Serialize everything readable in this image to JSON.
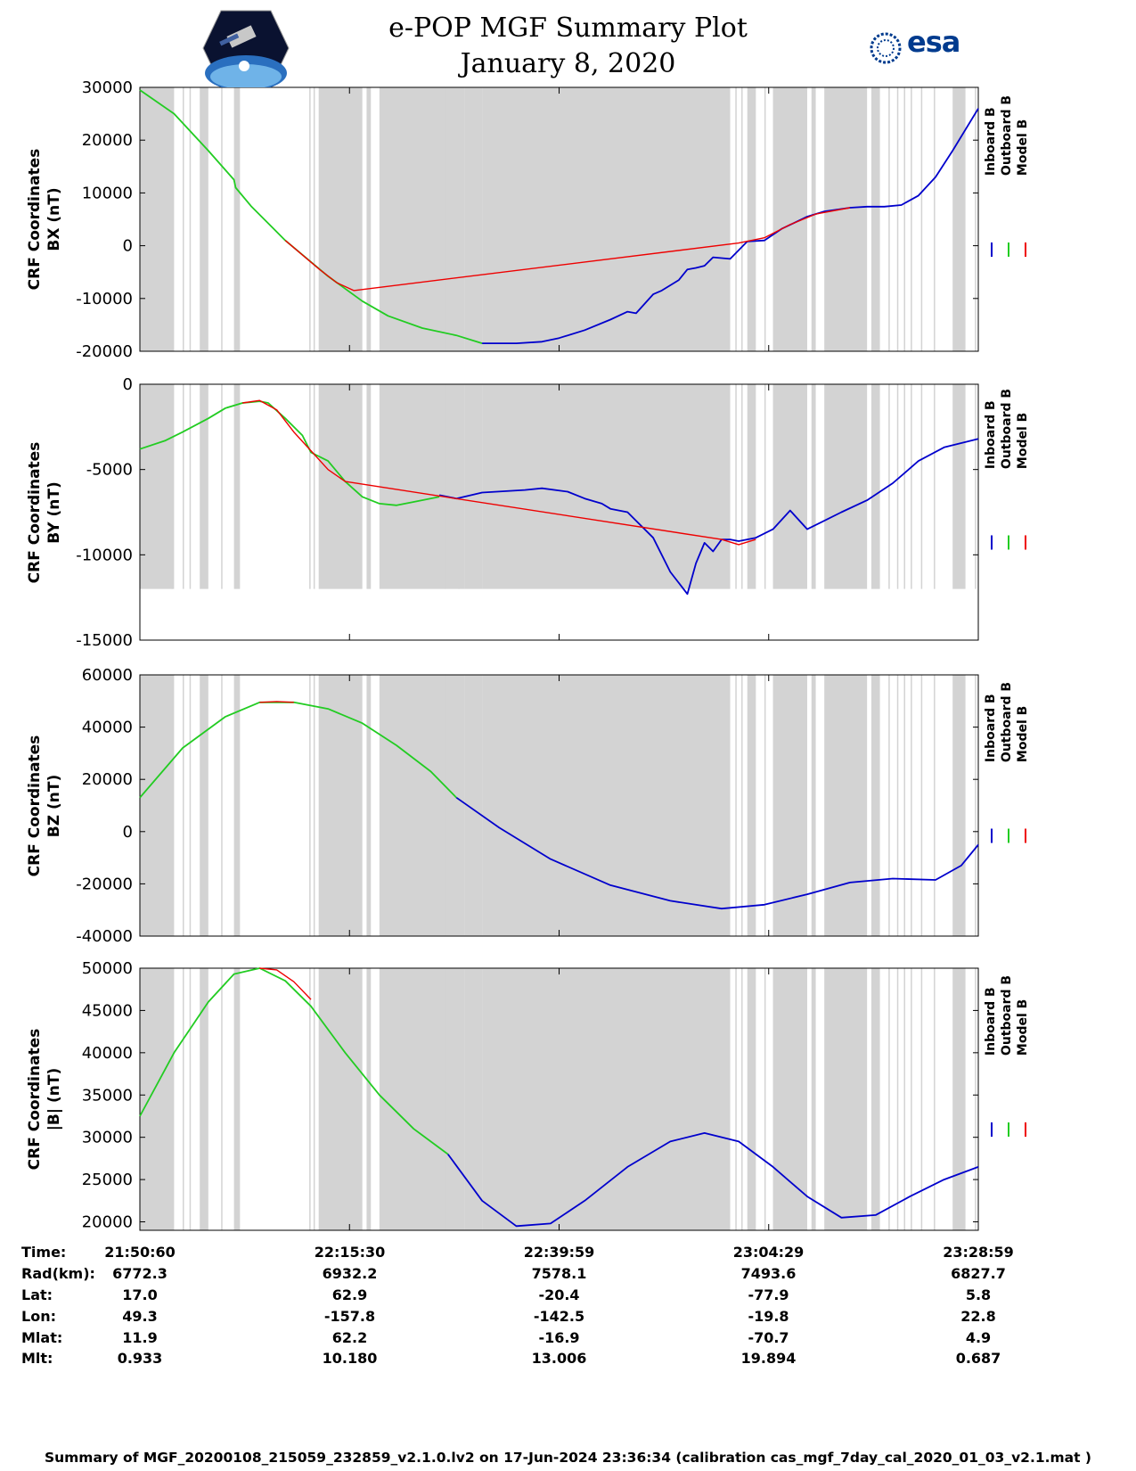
{
  "title": "e-POP MGF Summary Plot",
  "subtitle": "January 8, 2020",
  "logos": {
    "left": "cassiope-mission-logo",
    "right_text": "esa"
  },
  "colors": {
    "inboard": "#0000cc",
    "outboard": "#22cc22",
    "model": "#ee0000",
    "shade": "#d3d3d3"
  },
  "legend": {
    "inboard": "Inboard B",
    "outboard": "Outboard B",
    "model": "Model B"
  },
  "time_table": {
    "row_labels": [
      "Time:",
      "Rad(km):",
      "Lat:",
      "Lon:",
      "Mlat:",
      "Mlt:"
    ],
    "columns": [
      [
        "21:50:60",
        "6772.3",
        "17.0",
        "49.3",
        "11.9",
        "0.933"
      ],
      [
        "22:15:30",
        "6932.2",
        "62.9",
        "-157.8",
        "62.2",
        "10.180"
      ],
      [
        "22:39:59",
        "7578.1",
        "-20.4",
        "-142.5",
        "-16.9",
        "13.006"
      ],
      [
        "23:04:29",
        "7493.6",
        "-77.9",
        "-19.8",
        "-70.7",
        "19.894"
      ],
      [
        "23:28:59",
        "6827.7",
        "5.8",
        "22.8",
        "4.9",
        "0.687"
      ]
    ]
  },
  "footer": "Summary of MGF_20200108_215059_232859_v2.1.0.lv2 on 17-Jun-2024 23:36:34 (calibration cas_mgf_7day_cal_2020_01_03_v2.1.mat )",
  "chart_data": [
    {
      "type": "line",
      "ylabel": "CRF Coordinates BX (nT)",
      "ylabel_lines": [
        "CRF Coordinates",
        "BX (nT)"
      ],
      "xlim_minutes": [
        0,
        98
      ],
      "xticks_minutes": [
        24.5,
        49,
        73.5
      ],
      "ylim": [
        -20000,
        30000
      ],
      "yticks": [
        -20000,
        -10000,
        0,
        10000,
        20000,
        30000
      ],
      "green_end_minute": 40,
      "series": [
        {
          "name": "Inboard B",
          "x": [
            40,
            44,
            47,
            49,
            52,
            55,
            57,
            58,
            60,
            61,
            63,
            64,
            65,
            66,
            67,
            69,
            71,
            73,
            75,
            78,
            80,
            83,
            85,
            87,
            89,
            91,
            93,
            95,
            98
          ],
          "y": [
            -18500,
            -18500,
            -18200,
            -17500,
            -16000,
            -14000,
            -12500,
            -12800,
            -9200,
            -8500,
            -6500,
            -4500,
            -4200,
            -3800,
            -2200,
            -2500,
            800,
            1000,
            3200,
            5500,
            6500,
            7200,
            7400,
            7400,
            7700,
            9500,
            13000,
            18000,
            26000
          ]
        },
        {
          "name": "Outboard B",
          "x": [
            0,
            4,
            8,
            11,
            11.2,
            13,
            17,
            22,
            26,
            29,
            33,
            37,
            40
          ],
          "y": [
            29500,
            25000,
            18000,
            12500,
            11000,
            7500,
            1000,
            -5800,
            -10500,
            -13300,
            -15600,
            -17000,
            -18500
          ]
        },
        {
          "name": "Model B",
          "x": [
            17,
            21,
            23,
            25,
            70,
            73,
            76,
            79,
            83
          ],
          "y": [
            1000,
            -4500,
            -7000,
            -8500,
            500,
            1500,
            4000,
            6000,
            7200
          ]
        }
      ]
    },
    {
      "type": "line",
      "ylabel": "CRF Coordinates BY (nT)",
      "ylabel_lines": [
        "CRF Coordinates",
        "BY (nT)"
      ],
      "xlim_minutes": [
        0,
        98
      ],
      "xticks_minutes": [
        24.5,
        49,
        73.5
      ],
      "ylim": [
        -15000,
        0
      ],
      "yticks": [
        -15000,
        -10000,
        -5000,
        0
      ],
      "green_end_minute": 35,
      "series": [
        {
          "name": "Inboard B",
          "x": [
            35,
            37,
            40,
            45,
            47,
            50,
            52,
            54,
            55,
            57,
            58,
            60,
            62,
            64,
            65,
            66,
            67,
            68,
            69,
            70,
            72,
            74,
            76,
            78,
            80,
            82,
            85,
            88,
            91,
            94,
            98
          ],
          "y": [
            -6500,
            -6700,
            -6350,
            -6200,
            -6100,
            -6300,
            -6700,
            -7000,
            -7300,
            -7500,
            -8000,
            -9000,
            -11000,
            -12300,
            -10500,
            -9300,
            -9800,
            -9100,
            -9100,
            -9200,
            -9000,
            -8500,
            -7400,
            -8500,
            -8000,
            -7500,
            -6800,
            -5800,
            -4500,
            -3700,
            -3200
          ]
        },
        {
          "name": "Outboard B",
          "x": [
            0,
            3,
            5,
            8,
            10,
            12,
            13,
            14,
            15,
            17,
            19,
            20,
            22,
            24,
            26,
            28,
            30,
            32,
            35
          ],
          "y": [
            -3800,
            -3300,
            -2800,
            -2000,
            -1400,
            -1100,
            -1050,
            -1000,
            -1100,
            -2000,
            -3000,
            -4000,
            -4500,
            -5700,
            -6600,
            -7000,
            -7100,
            -6900,
            -6600
          ]
        },
        {
          "name": "Model B",
          "x": [
            12,
            14,
            16,
            18,
            20,
            22,
            24,
            68,
            70,
            72
          ],
          "y": [
            -1100,
            -950,
            -1500,
            -2800,
            -3900,
            -5000,
            -5700,
            -9100,
            -9400,
            -9100
          ]
        }
      ]
    },
    {
      "type": "line",
      "ylabel": "CRF Coordinates BZ (nT)",
      "ylabel_lines": [
        "CRF Coordinates",
        "BZ (nT)"
      ],
      "xlim_minutes": [
        0,
        98
      ],
      "xticks_minutes": [
        24.5,
        49,
        73.5
      ],
      "ylim": [
        -40000,
        60000
      ],
      "yticks": [
        -40000,
        -20000,
        0,
        20000,
        40000,
        60000
      ],
      "green_end_minute": 37,
      "series": [
        {
          "name": "Inboard B",
          "x": [
            37,
            42,
            48,
            55,
            62,
            68,
            73,
            78,
            83,
            88,
            93,
            96,
            98
          ],
          "y": [
            13000,
            1500,
            -10500,
            -20500,
            -26500,
            -29500,
            -28000,
            -24000,
            -19500,
            -18000,
            -18500,
            -13000,
            -5000
          ]
        },
        {
          "name": "Outboard B",
          "x": [
            0,
            5,
            10,
            14,
            18,
            22,
            26,
            30,
            34,
            37
          ],
          "y": [
            13000,
            32000,
            44000,
            49500,
            49500,
            47000,
            41500,
            33000,
            23000,
            13000
          ]
        },
        {
          "name": "Model B",
          "x": [
            14,
            16,
            18
          ],
          "y": [
            49500,
            49800,
            49500
          ]
        }
      ]
    },
    {
      "type": "line",
      "ylabel": "CRF Coordinates |B| (nT)",
      "ylabel_lines": [
        "CRF Coordinates",
        "|B| (nT)"
      ],
      "xlim_minutes": [
        0,
        98
      ],
      "xticks_minutes": [
        24.5,
        49,
        73.5
      ],
      "ylim": [
        19000,
        50000
      ],
      "yticks": [
        20000,
        25000,
        30000,
        35000,
        40000,
        45000,
        50000
      ],
      "green_end_minute": 36,
      "series": [
        {
          "name": "Inboard B",
          "x": [
            36,
            40,
            44,
            48,
            52,
            57,
            62,
            66,
            70,
            74,
            78,
            82,
            86,
            90,
            94,
            98
          ],
          "y": [
            28000,
            22500,
            19500,
            19800,
            22500,
            26500,
            29500,
            30500,
            29500,
            26500,
            23000,
            20500,
            20800,
            23000,
            25000,
            26500
          ]
        },
        {
          "name": "Outboard B",
          "x": [
            0,
            4,
            8,
            11,
            14,
            17,
            20,
            24,
            28,
            32,
            36
          ],
          "y": [
            32500,
            40000,
            46000,
            49300,
            50000,
            48500,
            45500,
            40000,
            35000,
            31000,
            28000
          ]
        },
        {
          "name": "Model B",
          "x": [
            14,
            16,
            18,
            20
          ],
          "y": [
            50000,
            49800,
            48400,
            46300
          ]
        }
      ]
    }
  ]
}
